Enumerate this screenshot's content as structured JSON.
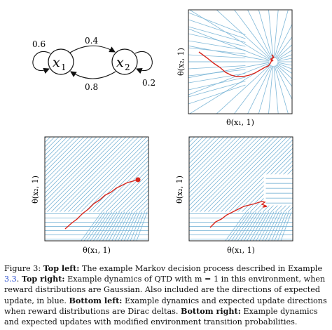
{
  "mdp": {
    "node_x1": "x",
    "node_x1_sub": "1",
    "node_x2": "x",
    "node_x2_sub": "2",
    "p_self_x1": "0.6",
    "p_x1_to_x2": "0.4",
    "p_x2_to_x1": "0.8",
    "p_self_x2": "0.2"
  },
  "panels": {
    "top_right": {
      "xlabel": "θ(x₁, 1)",
      "ylabel": "θ(x₂, 1)"
    },
    "bottom_left": {
      "xlabel": "θ(x₁, 1)",
      "ylabel": "θ(x₂, 1)"
    },
    "bottom_right": {
      "xlabel": "θ(x₁, 1)",
      "ylabel": "θ(x₂, 1)"
    }
  },
  "caption": {
    "prefix": "Figure 3:",
    "tl_head": "Top left:",
    "tl_text": " The example Markov decision process described in Example ",
    "tl_ref": "3.3",
    "tl_end": ".",
    "tr_head": "Top right:",
    "tr_text": " Example dynamics of QTD with m = 1 in this environment, when reward distributions are Gaussian. Also included are the directions of expected update, in blue.",
    "bl_head": "Bottom left:",
    "bl_text": " Example dynamics and expected update directions when reward distributions are Dirac deltas.",
    "br_head": "Bottom right:",
    "br_text": " Example dynamics and expected updates with modified environment transition probabilities."
  },
  "colors": {
    "streamline": "#7fb8d8",
    "trajectory": "#d9261c",
    "frame": "#222222"
  }
}
